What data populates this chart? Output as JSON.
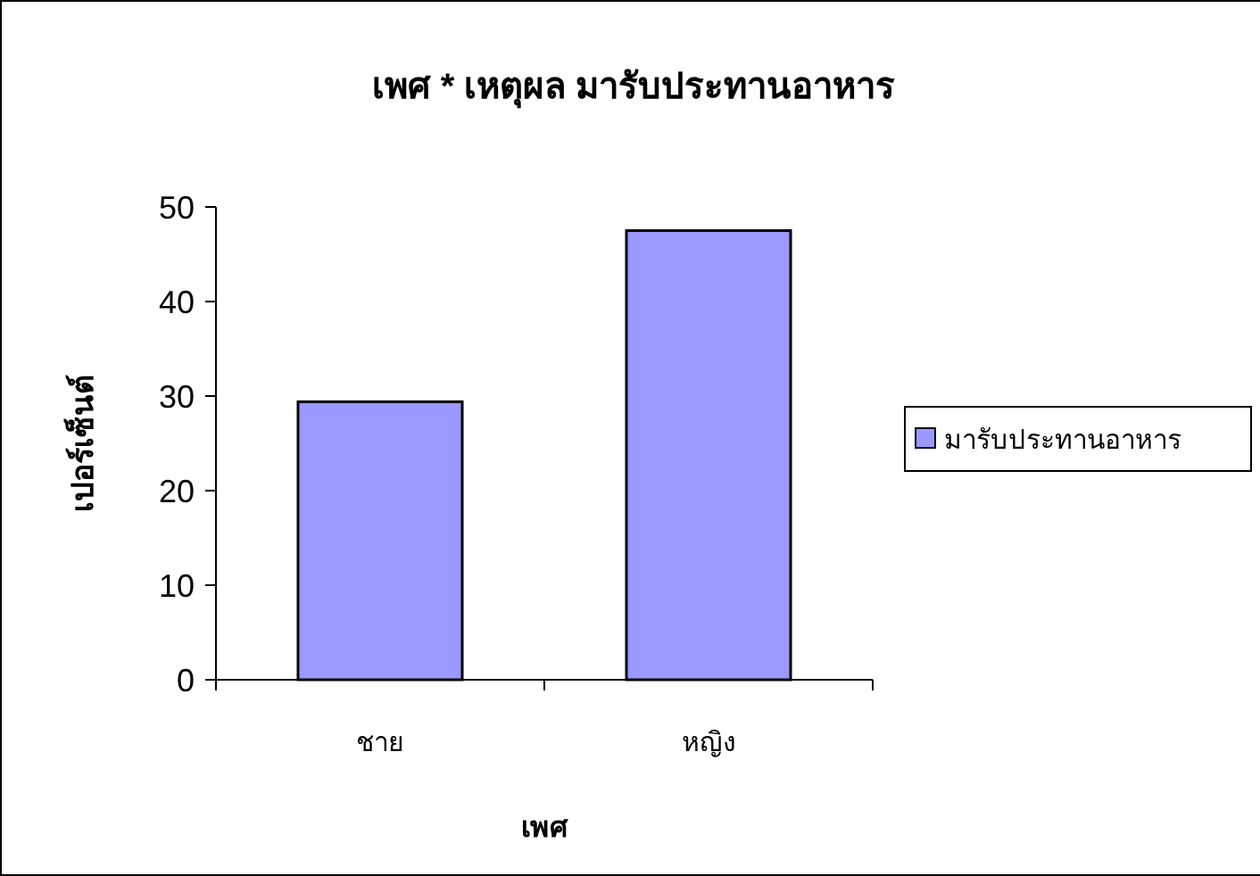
{
  "chart_data": {
    "type": "bar",
    "title": "เพศ * เหตุผล มารับประทานอาหาร",
    "xlabel": "เพศ",
    "ylabel": "เปอร์เซ็นต์",
    "categories": [
      "ชาย",
      "หญิง"
    ],
    "series": [
      {
        "name": "มารับประทานอาหาร",
        "color": "#9999ff",
        "values": [
          29.4,
          47.5
        ]
      }
    ],
    "ylim": [
      0,
      50
    ],
    "yticks": [
      0,
      10,
      20,
      30,
      40,
      50
    ],
    "grid": false,
    "legend": "right"
  }
}
